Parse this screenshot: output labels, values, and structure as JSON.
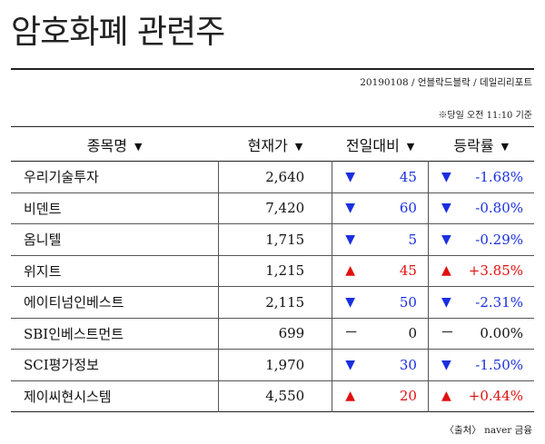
{
  "title": "암호화폐 관련주",
  "source_top": "20190108 / 언블락드블락 / 데일리리포트",
  "as_of": "※당일 오전 11:10 기준",
  "columns": {
    "name": "종목명",
    "price": "현재가",
    "change": "전일대비",
    "rate": "등락률",
    "sort_glyph": "▼"
  },
  "rows": [
    {
      "name": "우리기술투자",
      "price": "2,640",
      "dir": "down",
      "arrow": "▼",
      "change": "45",
      "rate_arrow": "▼",
      "rate": "-1.68%"
    },
    {
      "name": "비덴트",
      "price": "7,420",
      "dir": "down",
      "arrow": "▼",
      "change": "60",
      "rate_arrow": "▼",
      "rate": "-0.80%"
    },
    {
      "name": "옴니텔",
      "price": "1,715",
      "dir": "down",
      "arrow": "▼",
      "change": "5",
      "rate_arrow": "▼",
      "rate": "-0.29%"
    },
    {
      "name": "위지트",
      "price": "1,215",
      "dir": "up",
      "arrow": "▲",
      "change": "45",
      "rate_arrow": "▲",
      "rate": "+3.85%"
    },
    {
      "name": "에이티넘인베스트",
      "price": "2,115",
      "dir": "down",
      "arrow": "▼",
      "change": "50",
      "rate_arrow": "▼",
      "rate": "-2.31%"
    },
    {
      "name": "SBI인베스트먼트",
      "price": "699",
      "dir": "flat",
      "arrow": "ㅡ",
      "change": "0",
      "rate_arrow": "ㅡ",
      "rate": "0.00%"
    },
    {
      "name": "SCI평가정보",
      "price": "1,970",
      "dir": "down",
      "arrow": "▼",
      "change": "30",
      "rate_arrow": "▼",
      "rate": "-1.50%"
    },
    {
      "name": "제이씨현시스템",
      "price": "4,550",
      "dir": "up",
      "arrow": "▲",
      "change": "20",
      "rate_arrow": "▲",
      "rate": "+0.44%"
    }
  ],
  "source_bottom": "〈출처〉 naver 금융",
  "colors": {
    "down": "#1a2fe0",
    "up": "#e01010",
    "flat": "#111111"
  }
}
